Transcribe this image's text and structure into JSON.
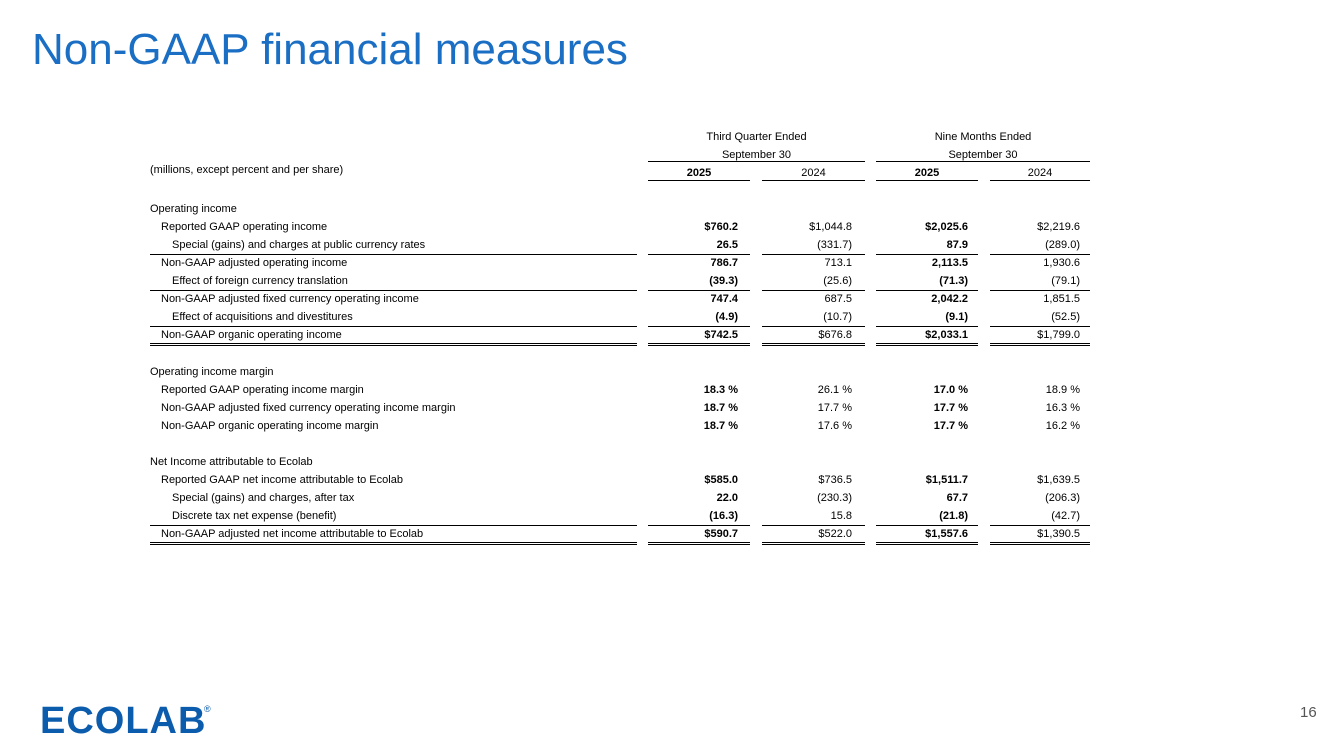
{
  "header": {
    "title": "Non-GAAP financial measures",
    "page_number": "16",
    "logo": "ECOLAB",
    "logo_mark": "®"
  },
  "table": {
    "group_headers": [
      [
        "Third Quarter Ended",
        "September 30"
      ],
      [
        "Nine Months Ended",
        "September 30"
      ]
    ],
    "unit_note": "(millions, except percent and per share)",
    "columns": [
      "2025",
      "2024",
      "2025",
      "2024"
    ],
    "rows": [
      [
        "Operating income"
      ],
      [
        "Reported GAAP operating income",
        "$760.2",
        "$1,044.8",
        "$2,025.6",
        "$2,219.6"
      ],
      [
        "Special (gains) and charges at public currency rates",
        "26.5",
        "(331.7)",
        "87.9",
        "(289.0)"
      ],
      [
        "Non-GAAP adjusted operating income",
        "786.7",
        "713.1",
        "2,113.5",
        "1,930.6"
      ],
      [
        "Effect of foreign currency translation",
        "(39.3)",
        "(25.6)",
        "(71.3)",
        "(79.1)"
      ],
      [
        "Non-GAAP adjusted fixed currency operating income",
        "747.4",
        "687.5",
        "2,042.2",
        "1,851.5"
      ],
      [
        "Effect of acquisitions and divestitures",
        "(4.9)",
        "(10.7)",
        "(9.1)",
        "(52.5)"
      ],
      [
        "Non-GAAP organic operating income",
        "$742.5",
        "$676.8",
        "$2,033.1",
        "$1,799.0"
      ],
      [
        "Operating income margin"
      ],
      [
        "Reported GAAP operating income margin",
        "18.3 %",
        "26.1 %",
        "17.0 %",
        "18.9 %"
      ],
      [
        "Non-GAAP adjusted fixed currency operating income margin",
        "18.7 %",
        "17.7 %",
        "17.7 %",
        "16.3 %"
      ],
      [
        "Non-GAAP organic operating income margin",
        "18.7 %",
        "17.6 %",
        "17.7 %",
        "16.2 %"
      ],
      [
        "Net Income attributable to Ecolab"
      ],
      [
        "Reported GAAP net income attributable to Ecolab",
        "$585.0",
        "$736.5",
        "$1,511.7",
        "$1,639.5"
      ],
      [
        "Special (gains) and charges, after tax",
        "22.0",
        "(230.3)",
        "67.7",
        "(206.3)"
      ],
      [
        "Discrete tax net expense (benefit)",
        "(16.3)",
        "15.8",
        "(21.8)",
        "(42.7)"
      ],
      [
        "Non-GAAP adjusted net income attributable to Ecolab",
        "$590.7",
        "$522.0",
        "$1,557.6",
        "$1,390.5"
      ]
    ]
  }
}
